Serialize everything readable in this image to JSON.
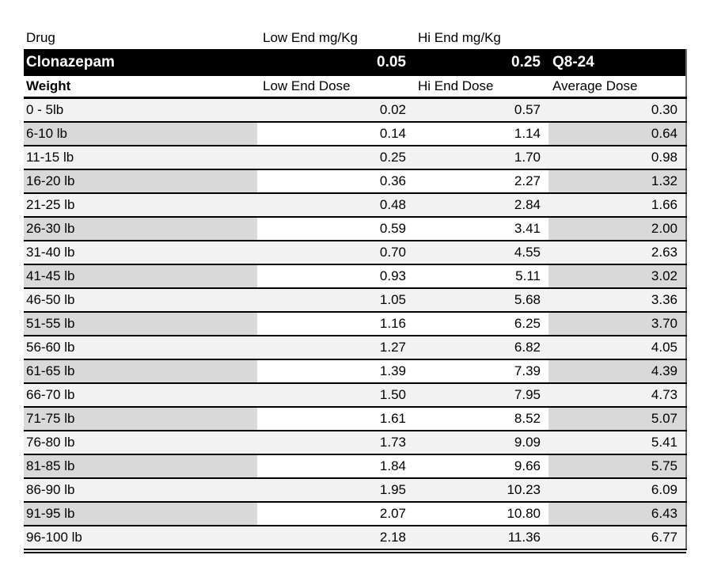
{
  "table": {
    "drug_header": {
      "drug": "Drug",
      "low_end": "Low End mg/Kg",
      "hi_end": "Hi End mg/Kg"
    },
    "drug_row": {
      "name": "Clonazepam",
      "low_end": "0.05",
      "hi_end": "0.25",
      "frequency": "Q8-24"
    },
    "dose_header": {
      "weight": "Weight",
      "low_end": "Low End Dose",
      "hi_end": "Hi End Dose",
      "average": "Average Dose"
    },
    "rows": [
      {
        "weight": "0 - 5lb",
        "low": "0.02",
        "hi": "0.57",
        "avg": "0.30"
      },
      {
        "weight": "6-10 lb",
        "low": "0.14",
        "hi": "1.14",
        "avg": "0.64"
      },
      {
        "weight": "11-15 lb",
        "low": "0.25",
        "hi": "1.70",
        "avg": "0.98"
      },
      {
        "weight": "16-20 lb",
        "low": "0.36",
        "hi": "2.27",
        "avg": "1.32"
      },
      {
        "weight": "21-25 lb",
        "low": "0.48",
        "hi": "2.84",
        "avg": "1.66"
      },
      {
        "weight": "26-30 lb",
        "low": "0.59",
        "hi": "3.41",
        "avg": "2.00"
      },
      {
        "weight": "31-40 lb",
        "low": "0.70",
        "hi": "4.55",
        "avg": "2.63"
      },
      {
        "weight": "41-45 lb",
        "low": "0.93",
        "hi": "5.11",
        "avg": "3.02"
      },
      {
        "weight": "46-50 lb",
        "low": "1.05",
        "hi": "5.68",
        "avg": "3.36"
      },
      {
        "weight": "51-55 lb",
        "low": "1.16",
        "hi": "6.25",
        "avg": "3.70"
      },
      {
        "weight": "56-60 lb",
        "low": "1.27",
        "hi": "6.82",
        "avg": "4.05"
      },
      {
        "weight": "61-65 lb",
        "low": "1.39",
        "hi": "7.39",
        "avg": "4.39"
      },
      {
        "weight": "66-70 lb",
        "low": "1.50",
        "hi": "7.95",
        "avg": "4.73"
      },
      {
        "weight": "71-75 lb",
        "low": "1.61",
        "hi": "8.52",
        "avg": "5.07"
      },
      {
        "weight": "76-80 lb",
        "low": "1.73",
        "hi": "9.09",
        "avg": "5.41"
      },
      {
        "weight": "81-85 lb",
        "low": "1.84",
        "hi": "9.66",
        "avg": "5.75"
      },
      {
        "weight": "86-90 lb",
        "low": "1.95",
        "hi": "10.23",
        "avg": "6.09"
      },
      {
        "weight": "91-95 lb",
        "low": "2.07",
        "hi": "10.80",
        "avg": "6.43"
      },
      {
        "weight": "96-100 lb",
        "low": "2.18",
        "hi": "11.36",
        "avg": "6.77"
      }
    ]
  },
  "colors": {
    "row_light": "#f2f2f2",
    "row_dark": "#d9d9d9",
    "drug_row_background": "#000000",
    "drug_row_text": "#ffffff",
    "border": "#000000"
  }
}
